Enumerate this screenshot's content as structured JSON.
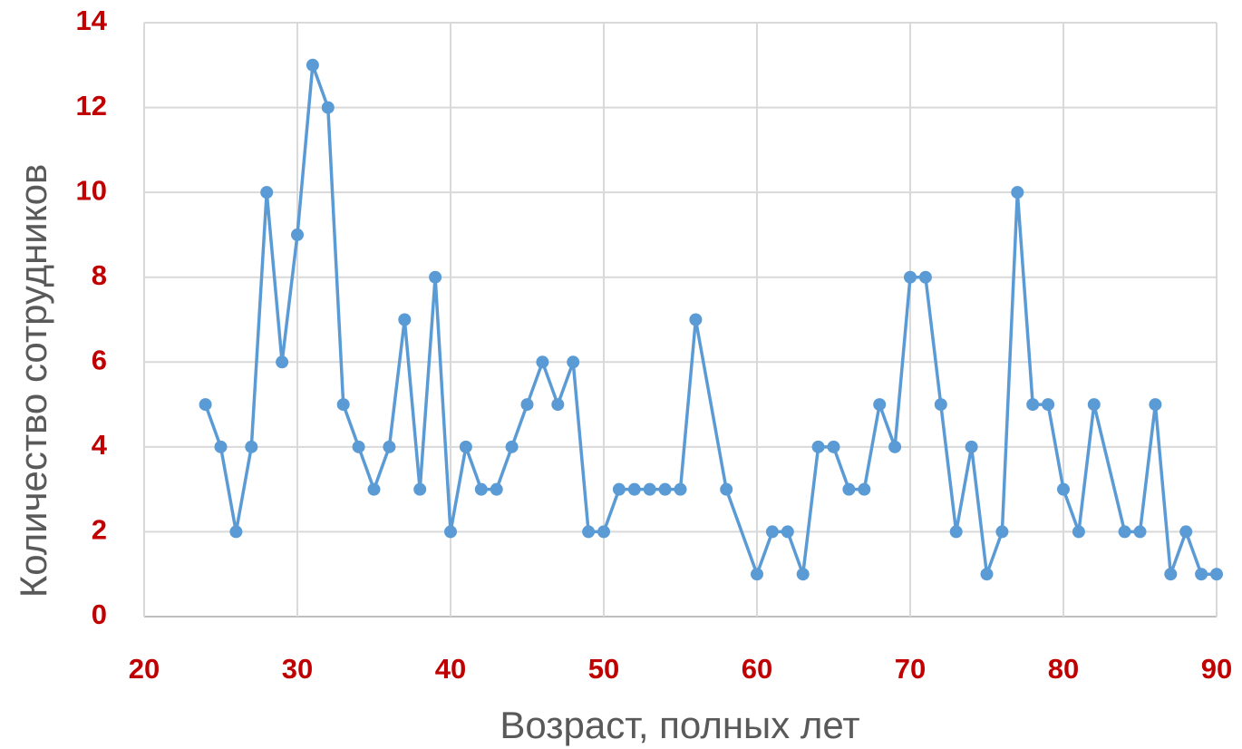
{
  "chart_data": {
    "type": "line",
    "x_label": "Возраст, полных лет",
    "y_label": "Количество сотрудников",
    "x": [
      24,
      25,
      26,
      27,
      28,
      29,
      30,
      31,
      32,
      33,
      34,
      35,
      36,
      37,
      38,
      39,
      40,
      41,
      42,
      43,
      44,
      45,
      46,
      47,
      48,
      49,
      50,
      51,
      52,
      53,
      54,
      55,
      56,
      58,
      60,
      61,
      62,
      63,
      64,
      65,
      66,
      67,
      68,
      69,
      70,
      71,
      72,
      73,
      74,
      75,
      76,
      77,
      78,
      79,
      80,
      81,
      82,
      84,
      85,
      86,
      87,
      88,
      89,
      90
    ],
    "values": [
      5,
      4,
      2,
      4,
      10,
      6,
      9,
      13,
      12,
      5,
      4,
      3,
      4,
      7,
      3,
      8,
      2,
      4,
      3,
      3,
      4,
      5,
      6,
      5,
      6,
      2,
      2,
      3,
      3,
      3,
      3,
      3,
      7,
      3,
      1,
      2,
      2,
      1,
      4,
      4,
      3,
      3,
      5,
      4,
      8,
      8,
      5,
      2,
      4,
      1,
      2,
      10,
      5,
      5,
      3,
      2,
      5,
      2,
      2,
      5,
      1,
      2,
      1,
      1
    ],
    "color": "#5b9bd5",
    "xlim": [
      20,
      90
    ],
    "xticks": [
      20,
      30,
      40,
      50,
      60,
      70,
      80,
      90
    ],
    "ylim": [
      0,
      14
    ],
    "yticks": [
      0,
      2,
      4,
      6,
      8,
      10,
      12,
      14
    ],
    "grid": true,
    "markers": true
  }
}
